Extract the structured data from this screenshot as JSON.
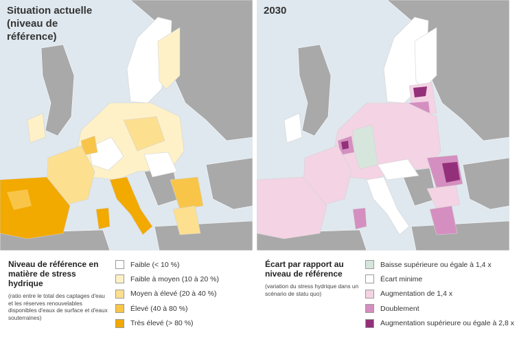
{
  "left_map": {
    "title": "Situation actuelle\n(niveau de\nréférence)",
    "legend": {
      "title": "Niveau de référence en matière de stress hydrique",
      "note": "(ratio entre le total des captages d'eau et les réserves renouvelables disponibles d'eaux de surface et d'eaux souterraines)",
      "items": [
        {
          "label": "Faible (< 10 %)",
          "color": "#ffffff"
        },
        {
          "label": "Faible à moyen (10 à 20 %)",
          "color": "#fff1c7"
        },
        {
          "label": "Moyen à élevé (20 à 40 %)",
          "color": "#fcdf8f"
        },
        {
          "label": "Élevé (40 à 80 %)",
          "color": "#f8c548"
        },
        {
          "label": "Très élevé (> 80 %)",
          "color": "#f2a900"
        }
      ]
    }
  },
  "right_map": {
    "title": "2030",
    "legend": {
      "title": "Écart par rapport au niveau de référence",
      "note": "(variation du stress hydrique dans un scénario de statu quo)",
      "items": [
        {
          "label": "Baisse supérieure ou égale à 1,4 x",
          "color": "#d6e6dc"
        },
        {
          "label": "Écart minime",
          "color": "#ffffff"
        },
        {
          "label": "Augmentation de 1,4 x",
          "color": "#f3d3e4"
        },
        {
          "label": "Doublement",
          "color": "#d48fc0"
        },
        {
          "label": "Augmentation supérieure ou égale à 2,8 x",
          "color": "#94307a"
        }
      ]
    }
  },
  "colors": {
    "sea": "#dfe8ee",
    "non_eu_land": "#a9a9a9"
  }
}
